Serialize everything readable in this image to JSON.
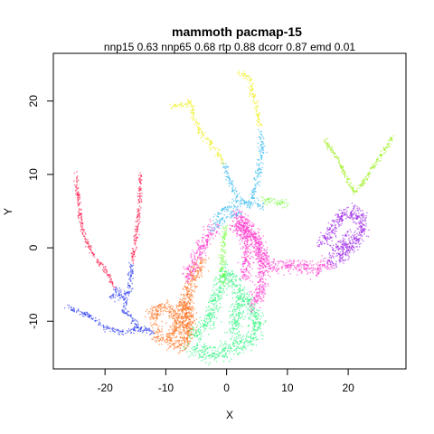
{
  "chart_data": {
    "type": "scatter",
    "title": "mammoth pacmap-15",
    "subtitle": "nnp15 0.63 nnp65 0.68 rtp 0.88 dcorr 0.87 emd 0.01",
    "xlabel": "X",
    "ylabel": "Y",
    "xlim": [
      -28.5,
      29.5
    ],
    "ylim": [
      -16.5,
      26.5
    ],
    "xticks": [
      -20,
      -10,
      0,
      10,
      20
    ],
    "yticks": [
      -10,
      0,
      10,
      20
    ],
    "grid": false,
    "legend": "none",
    "series": [
      {
        "color": "#ff1a4b",
        "paths": [
          [
            [
              -24.8,
              10.0
            ],
            [
              -24.5,
              7.0
            ],
            [
              -24.0,
              4.0
            ],
            [
              -23.2,
              1.0
            ],
            [
              -21.5,
              -1.5
            ],
            [
              -19.5,
              -3.5
            ],
            [
              -18.5,
              -5.5
            ]
          ],
          [
            [
              -14.2,
              10.0
            ],
            [
              -14.3,
              7.0
            ],
            [
              -14.6,
              4.0
            ],
            [
              -15.0,
              1.0
            ],
            [
              -15.5,
              -2.0
            ]
          ]
        ],
        "spread": 0.35
      },
      {
        "color": "#2233ee",
        "paths": [
          [
            [
              -18.5,
              -5.5
            ],
            [
              -17.0,
              -6.5
            ],
            [
              -16.0,
              -6.0
            ],
            [
              -15.5,
              -2.0
            ]
          ],
          [
            [
              -26.5,
              -8.0
            ],
            [
              -23.0,
              -9.0
            ],
            [
              -20.0,
              -11.0
            ],
            [
              -17.0,
              -11.5
            ],
            [
              -15.0,
              -11.0
            ],
            [
              -13.0,
              -11.0
            ],
            [
              -12.0,
              -11.8
            ]
          ],
          [
            [
              -19.5,
              -7.0
            ],
            [
              -18.0,
              -6.5
            ],
            [
              -16.5,
              -7.0
            ],
            [
              -17.0,
              -8.5
            ],
            [
              -15.5,
              -9.5
            ],
            [
              -14.0,
              -11.5
            ]
          ]
        ],
        "spread": 0.45
      },
      {
        "color": "#ff6f1a",
        "paths": [
          [
            [
              -12.0,
              -11.5
            ],
            [
              -10.0,
              -12.5
            ],
            [
              -7.5,
              -13.5
            ],
            [
              -6.5,
              -12.0
            ],
            [
              -8.5,
              -9.0
            ],
            [
              -10.5,
              -8.0
            ],
            [
              -12.0,
              -8.5
            ],
            [
              -11.5,
              -10.5
            ]
          ],
          [
            [
              -6.0,
              -12.0
            ],
            [
              -6.5,
              -9.0
            ],
            [
              -6.0,
              -5.0
            ],
            [
              -5.0,
              -3.0
            ],
            [
              -4.0,
              -1.5
            ]
          ],
          [
            [
              -9.0,
              -12.0
            ],
            [
              -7.0,
              -7.0
            ],
            [
              -6.0,
              -10.0
            ]
          ]
        ],
        "spread": 1.1
      },
      {
        "color": "#23f57a",
        "paths": [
          [
            [
              -6.0,
              -13.5
            ],
            [
              -3.0,
              -14.5
            ],
            [
              0.0,
              -14.0
            ],
            [
              2.5,
              -13.0
            ],
            [
              4.0,
              -12.5
            ],
            [
              5.0,
              -10.5
            ],
            [
              4.0,
              -8.0
            ],
            [
              2.0,
              -6.0
            ],
            [
              0.5,
              -3.5
            ]
          ],
          [
            [
              -5.5,
              -12.0
            ],
            [
              -3.0,
              -10.0
            ],
            [
              -2.0,
              -8.0
            ],
            [
              -1.0,
              -5.5
            ],
            [
              0.0,
              -3.0
            ]
          ],
          [
            [
              1.0,
              -12.0
            ],
            [
              1.5,
              -9.0
            ],
            [
              2.5,
              -7.0
            ]
          ]
        ],
        "spread": 1.2
      },
      {
        "color": "#66ff22",
        "paths": [
          [
            [
              -0.5,
              -5.0
            ],
            [
              -0.8,
              -2.0
            ],
            [
              -0.5,
              1.0
            ],
            [
              0.0,
              3.0
            ]
          ],
          [
            [
              5.5,
              6.5
            ],
            [
              7.5,
              6.5
            ],
            [
              10.0,
              6.0
            ]
          ]
        ],
        "spread": 0.55
      },
      {
        "color": "#ff33cc",
        "paths": [
          [
            [
              1.0,
              3.0
            ],
            [
              3.0,
              2.5
            ],
            [
              5.0,
              1.0
            ],
            [
              6.0,
              -1.0
            ],
            [
              7.0,
              -2.5
            ],
            [
              9.0,
              -2.5
            ],
            [
              12.0,
              -2.5
            ],
            [
              15.0,
              -2.8
            ],
            [
              17.0,
              -2.0
            ]
          ],
          [
            [
              -2.0,
              3.0
            ],
            [
              -3.5,
              1.0
            ],
            [
              -5.0,
              -1.5
            ],
            [
              -6.5,
              -4.0
            ]
          ],
          [
            [
              2.5,
              4.0
            ],
            [
              4.5,
              2.0
            ],
            [
              6.0,
              -3.0
            ],
            [
              5.5,
              -6.0
            ],
            [
              4.0,
              -8.0
            ]
          ],
          [
            [
              1.5,
              5.0
            ],
            [
              3.5,
              0.0
            ],
            [
              3.0,
              -4.0
            ]
          ]
        ],
        "spread": 1.0
      },
      {
        "color": "#29b6f0",
        "paths": [
          [
            [
              -2.0,
              4.0
            ],
            [
              0.0,
              5.5
            ],
            [
              2.0,
              6.0
            ],
            [
              4.0,
              6.5
            ],
            [
              6.0,
              5.5
            ]
          ],
          [
            [
              -0.5,
              11.5
            ],
            [
              0.5,
              9.0
            ],
            [
              1.5,
              7.0
            ],
            [
              2.5,
              6.0
            ]
          ],
          [
            [
              5.5,
              16.0
            ],
            [
              5.8,
              13.0
            ],
            [
              5.3,
              10.5
            ],
            [
              4.5,
              7.5
            ],
            [
              3.5,
              5.5
            ]
          ],
          [
            [
              -2.5,
              2.5
            ],
            [
              -1.0,
              3.5
            ],
            [
              0.5,
              4.5
            ],
            [
              2.5,
              5.0
            ]
          ]
        ],
        "spread": 0.55
      },
      {
        "color": "#eeee11",
        "paths": [
          [
            [
              -9.0,
              19.0
            ],
            [
              -7.5,
              19.5
            ],
            [
              -6.0,
              20.0
            ],
            [
              -5.5,
              18.0
            ],
            [
              -4.5,
              16.0
            ],
            [
              -3.0,
              14.5
            ],
            [
              -1.5,
              13.0
            ],
            [
              -0.5,
              11.5
            ]
          ],
          [
            [
              2.0,
              24.0
            ],
            [
              3.0,
              23.5
            ],
            [
              4.0,
              23.0
            ],
            [
              4.2,
              21.0
            ],
            [
              5.0,
              19.0
            ],
            [
              5.5,
              16.5
            ]
          ]
        ],
        "spread": 0.5
      },
      {
        "color": "#9b1fe8",
        "paths": [
          [
            [
              17.0,
              -2.0
            ],
            [
              18.5,
              -1.5
            ],
            [
              20.0,
              -0.5
            ],
            [
              21.5,
              1.0
            ],
            [
              22.5,
              2.5
            ],
            [
              22.0,
              4.0
            ],
            [
              21.5,
              5.5
            ]
          ],
          [
            [
              15.5,
              0.5
            ],
            [
              17.0,
              2.0
            ],
            [
              18.5,
              4.0
            ],
            [
              20.0,
              5.0
            ],
            [
              21.0,
              4.0
            ]
          ],
          [
            [
              17.5,
              -0.5
            ],
            [
              19.5,
              0.5
            ],
            [
              20.5,
              2.0
            ]
          ]
        ],
        "spread": 0.9
      },
      {
        "color": "#99ee11",
        "paths": [
          [
            [
              16.0,
              15.0
            ],
            [
              17.5,
              13.0
            ],
            [
              19.5,
              10.0
            ],
            [
              21.0,
              7.5
            ]
          ],
          [
            [
              21.0,
              7.5
            ],
            [
              22.5,
              9.0
            ],
            [
              24.5,
              11.5
            ],
            [
              26.5,
              14.0
            ],
            [
              27.3,
              15.2
            ]
          ]
        ],
        "spread": 0.35
      }
    ]
  }
}
